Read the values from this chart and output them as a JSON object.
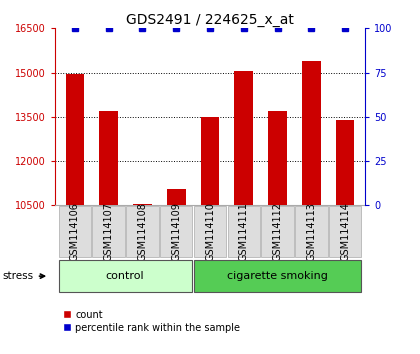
{
  "title": "GDS2491 / 224625_x_at",
  "samples": [
    "GSM114106",
    "GSM114107",
    "GSM114108",
    "GSM114109",
    "GSM114110",
    "GSM114111",
    "GSM114112",
    "GSM114113",
    "GSM114114"
  ],
  "counts": [
    14950,
    13700,
    10560,
    11050,
    13500,
    15050,
    13700,
    15400,
    13400
  ],
  "percentiles": [
    100,
    100,
    100,
    100,
    100,
    100,
    100,
    100,
    100
  ],
  "groups": [
    "control",
    "control",
    "control",
    "control",
    "cigarette smoking",
    "cigarette smoking",
    "cigarette smoking",
    "cigarette smoking",
    "cigarette smoking"
  ],
  "control_color": "#ccffcc",
  "smoke_color": "#55cc55",
  "bar_color": "#cc0000",
  "percentile_color": "#0000cc",
  "ylim_left": [
    10500,
    16500
  ],
  "ylim_right": [
    0,
    100
  ],
  "yticks_left": [
    10500,
    12000,
    13500,
    15000,
    16500
  ],
  "yticks_right": [
    0,
    25,
    50,
    75,
    100
  ],
  "gridlines": [
    12000,
    13500,
    15000
  ],
  "background_color": "#ffffff",
  "title_fontsize": 10,
  "tick_fontsize": 7,
  "bar_width": 0.55
}
